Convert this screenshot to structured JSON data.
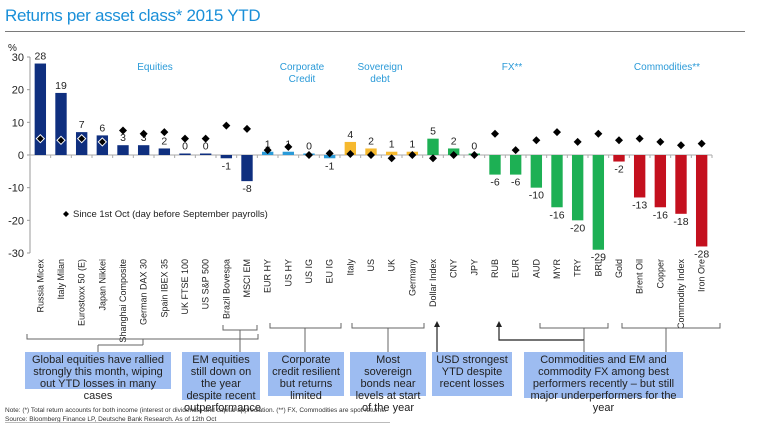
{
  "title": "Returns per asset class* 2015 YTD",
  "chart_data": {
    "type": "bar",
    "title": "Returns per asset class* 2015 YTD",
    "ylabel": "%",
    "xlabel": "",
    "ylim": [
      -30,
      30
    ],
    "yticks": [
      30,
      20,
      10,
      0,
      -10,
      -20,
      -30
    ],
    "grid": false,
    "categories": [
      "Russia Micex",
      "Italy Milan",
      "Eurostoxx 50 (E)",
      "Japan Nikkei",
      "Shanghai Composite",
      "German DAX 30",
      "Spain IBEX 35",
      "UK FTSE 100",
      "US S&P 500",
      "Brazil Bovespa",
      "MSCI EM",
      "EUR HY",
      "US HY",
      "US IG",
      "EU IG",
      "Italy",
      "US",
      "UK",
      "Germany",
      "Dollar Index",
      "CNY",
      "JPY",
      "RUB",
      "EUR",
      "AUD",
      "MYR",
      "TRY",
      "BRL",
      "Gold",
      "Brent Oil",
      "Copper",
      "Commodity Index",
      "Iron Ore"
    ],
    "groups": [
      "Equities",
      "Equities",
      "Equities",
      "Equities",
      "Equities",
      "Equities",
      "Equities",
      "Equities",
      "Equities",
      "Equities",
      "Equities",
      "Corporate Credit",
      "Corporate Credit",
      "Corporate Credit",
      "Corporate Credit",
      "Sovereign debt",
      "Sovereign debt",
      "Sovereign debt",
      "Sovereign debt",
      "FX**",
      "FX**",
      "FX**",
      "FX**",
      "FX**",
      "FX**",
      "FX**",
      "FX**",
      "FX**",
      "Commodities**",
      "Commodities**",
      "Commodities**",
      "Commodities**",
      "Commodities**"
    ],
    "series": [
      {
        "name": "2015 YTD",
        "values": [
          28,
          19,
          7,
          6,
          3,
          3,
          2,
          0,
          0,
          -1,
          -8,
          1,
          1,
          0,
          -1,
          4,
          2,
          1,
          1,
          5,
          2,
          0,
          -6,
          -6,
          -10,
          -16,
          -20,
          -29,
          -2,
          -13,
          -16,
          -18,
          -28
        ],
        "data_labels": [
          "28",
          "19",
          "7",
          "6",
          "3",
          "3",
          "2",
          "0",
          "0",
          "-1",
          "-8",
          "1",
          "1",
          "0",
          "-1",
          "4",
          "2",
          "1",
          "1",
          "5",
          "2",
          "0",
          "-6",
          "-6",
          "-10",
          "-16",
          "-20",
          "-29",
          "-2",
          "-13",
          "-16",
          "-18",
          "-28"
        ]
      },
      {
        "name": "Since 1st Oct (day before September payrolls)",
        "type": "scatter",
        "values": [
          5,
          4.5,
          5,
          4,
          7.5,
          6.5,
          7,
          5,
          5,
          9,
          8,
          1.5,
          2.5,
          0,
          0.5,
          0.3,
          0,
          -1,
          0,
          -1,
          0,
          0,
          6.5,
          1.5,
          4.5,
          7,
          4,
          6.5,
          4.5,
          5,
          4,
          3,
          3.5
        ]
      }
    ],
    "group_labels": [
      {
        "label": "Equities"
      },
      {
        "label": "Corporate\nCredit"
      },
      {
        "label": "Sovereign\ndebt"
      },
      {
        "label": "FX**"
      },
      {
        "label": "Commodities**"
      }
    ],
    "legend": {
      "label": "Since 1st Oct (day before September payrolls)",
      "placement": "center-left"
    },
    "colors": {
      "Equities": "#0f2f7f",
      "Corporate Credit": "#2a9ad8",
      "Sovereign debt": "#f6b92e",
      "FX**": "#1db054",
      "Commodities**": "#c4101e",
      "marker": "#000000",
      "group_label": "#2a9ad8"
    }
  },
  "callouts": [
    {
      "text": "Global equities have rallied strongly this month, wiping out YTD losses in many cases"
    },
    {
      "text": "EM equities still down on the year despite recent outperformance"
    },
    {
      "text": "Corporate credit resilient but returns limited"
    },
    {
      "text": "Most sovereign bonds near levels at start of the year"
    },
    {
      "text": "USD strongest YTD despite recent losses"
    },
    {
      "text": "Commodities and EM and commodity FX among best performers recently – but still major underperformers for the year"
    }
  ],
  "note": "Note: (*) Total return accounts for both income (interest or dividends) and capital appreciation. (**) FX, Commodities are spot returns.",
  "source": "Source: Bloomberg Finance LP, Deutsche Bank Research. As of 12th  Oct"
}
